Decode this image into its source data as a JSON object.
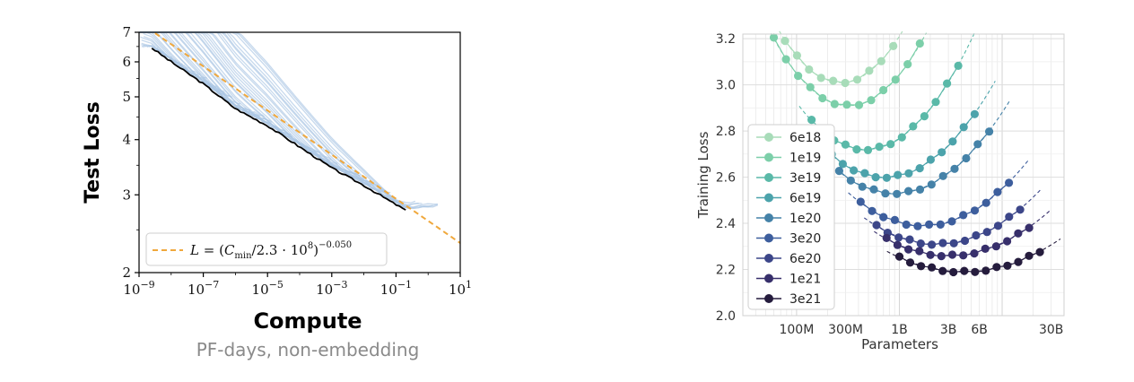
{
  "chart_data": [
    {
      "type": "line",
      "title": "",
      "xlabel": "Compute",
      "xlabel_sub": "PF-days, non-embedding",
      "ylabel": "Test Loss",
      "x_scale": "log",
      "y_scale": "log",
      "xlim": [
        1e-09,
        10
      ],
      "ylim": [
        2,
        7
      ],
      "x_ticks": [
        {
          "value": 1e-09,
          "base": "10",
          "exp": "−9"
        },
        {
          "value": 1e-07,
          "base": "10",
          "exp": "−7"
        },
        {
          "value": 1e-05,
          "base": "10",
          "exp": "−5"
        },
        {
          "value": 0.001,
          "base": "10",
          "exp": "−3"
        },
        {
          "value": 0.1,
          "base": "10",
          "exp": "−1"
        },
        {
          "value": 10,
          "base": "10",
          "exp": "1"
        }
      ],
      "y_ticks": [
        {
          "value": 2,
          "label": "2"
        },
        {
          "value": 3,
          "label": "3"
        },
        {
          "value": 4,
          "label": "4"
        },
        {
          "value": 5,
          "label": "5"
        },
        {
          "value": 6,
          "label": "6"
        },
        {
          "value": 7,
          "label": "7"
        }
      ],
      "fit": {
        "legend": {
          "lhs": "L",
          "eq": " = (",
          "c": "C",
          "sub": "min",
          "mid": "/2.3 · 10",
          "exp8": "8",
          "close": ")",
          "exp": "−0.050"
        },
        "coef": 230000000,
        "exponent": -0.05,
        "color": "#f0a83c",
        "style": "dashed"
      },
      "frontier": {
        "color": "#000000",
        "points": [
          [
            2.5e-09,
            6.45
          ],
          [
            1e-08,
            6.0
          ],
          [
            1e-07,
            5.35
          ],
          [
            1e-06,
            4.7
          ],
          [
            1e-05,
            4.3
          ],
          [
            0.0001,
            3.85
          ],
          [
            0.001,
            3.45
          ],
          [
            0.01,
            3.15
          ],
          [
            0.1,
            2.85
          ],
          [
            0.2,
            2.77
          ]
        ]
      },
      "curves_color": "#a9c4e4",
      "curves_description_count": 40,
      "legend_position": "lower-left"
    },
    {
      "type": "scatter",
      "title": "",
      "xlabel": "Parameters",
      "ylabel": "Training Loss",
      "x_scale": "log",
      "xlim": [
        30000000,
        40000000000
      ],
      "ylim": [
        2.0,
        3.22
      ],
      "x_ticks": [
        {
          "value": 100000000,
          "label": "100M"
        },
        {
          "value": 300000000,
          "label": "300M"
        },
        {
          "value": 1000000000,
          "label": "1B"
        },
        {
          "value": 3000000000,
          "label": "3B"
        },
        {
          "value": 6000000000,
          "label": "6B"
        },
        {
          "value": 30000000000,
          "label": "30B"
        }
      ],
      "y_ticks": [
        {
          "value": 2.0,
          "label": "2.0"
        },
        {
          "value": 2.2,
          "label": "2.2"
        },
        {
          "value": 2.4,
          "label": "2.4"
        },
        {
          "value": 2.6,
          "label": "2.6"
        },
        {
          "value": 2.8,
          "label": "2.8"
        },
        {
          "value": 3.0,
          "label": "3.0"
        },
        {
          "value": 3.2,
          "label": "3.2"
        }
      ],
      "grid": true,
      "legend_position": "left",
      "series": [
        {
          "name": "6e18",
          "color": "#a8dcb9",
          "opt_params": 270000000,
          "min_loss": 3.01,
          "curv": 0.62,
          "x_range": [
            45000000,
            1800000000
          ]
        },
        {
          "name": "1e19",
          "color": "#7ccfa9",
          "opt_params": 320000000,
          "min_loss": 2.91,
          "curv": 0.55,
          "x_range": [
            60000000,
            2500000000
          ]
        },
        {
          "name": "3e19",
          "color": "#5ab9a8",
          "opt_params": 470000000,
          "min_loss": 2.72,
          "curv": 0.45,
          "x_range": [
            140000000,
            4500000000
          ]
        },
        {
          "name": "6e19",
          "color": "#4ca3ab",
          "opt_params": 720000000,
          "min_loss": 2.6,
          "curv": 0.36,
          "x_range": [
            220000000,
            6500000000
          ]
        },
        {
          "name": "1e20",
          "color": "#4582a8",
          "opt_params": 900000000,
          "min_loss": 2.53,
          "curv": 0.32,
          "x_range": [
            260000000,
            9000000000
          ]
        },
        {
          "name": "3e20",
          "color": "#3d5e9d",
          "opt_params": 1700000000,
          "min_loss": 2.39,
          "curv": 0.27,
          "x_range": [
            420000000,
            14000000000
          ]
        },
        {
          "name": "6e20",
          "color": "#3c4689",
          "opt_params": 2300000000,
          "min_loss": 2.31,
          "curv": 0.23,
          "x_range": [
            600000000,
            18000000000
          ]
        },
        {
          "name": "1e21",
          "color": "#372f6b",
          "opt_params": 3000000000,
          "min_loss": 2.26,
          "curv": 0.2,
          "x_range": [
            750000000,
            22000000000
          ]
        },
        {
          "name": "3e21",
          "color": "#251c3d",
          "opt_params": 4200000000,
          "min_loss": 2.19,
          "curv": 0.16,
          "x_range": [
            1000000000,
            28000000000
          ]
        }
      ]
    }
  ]
}
